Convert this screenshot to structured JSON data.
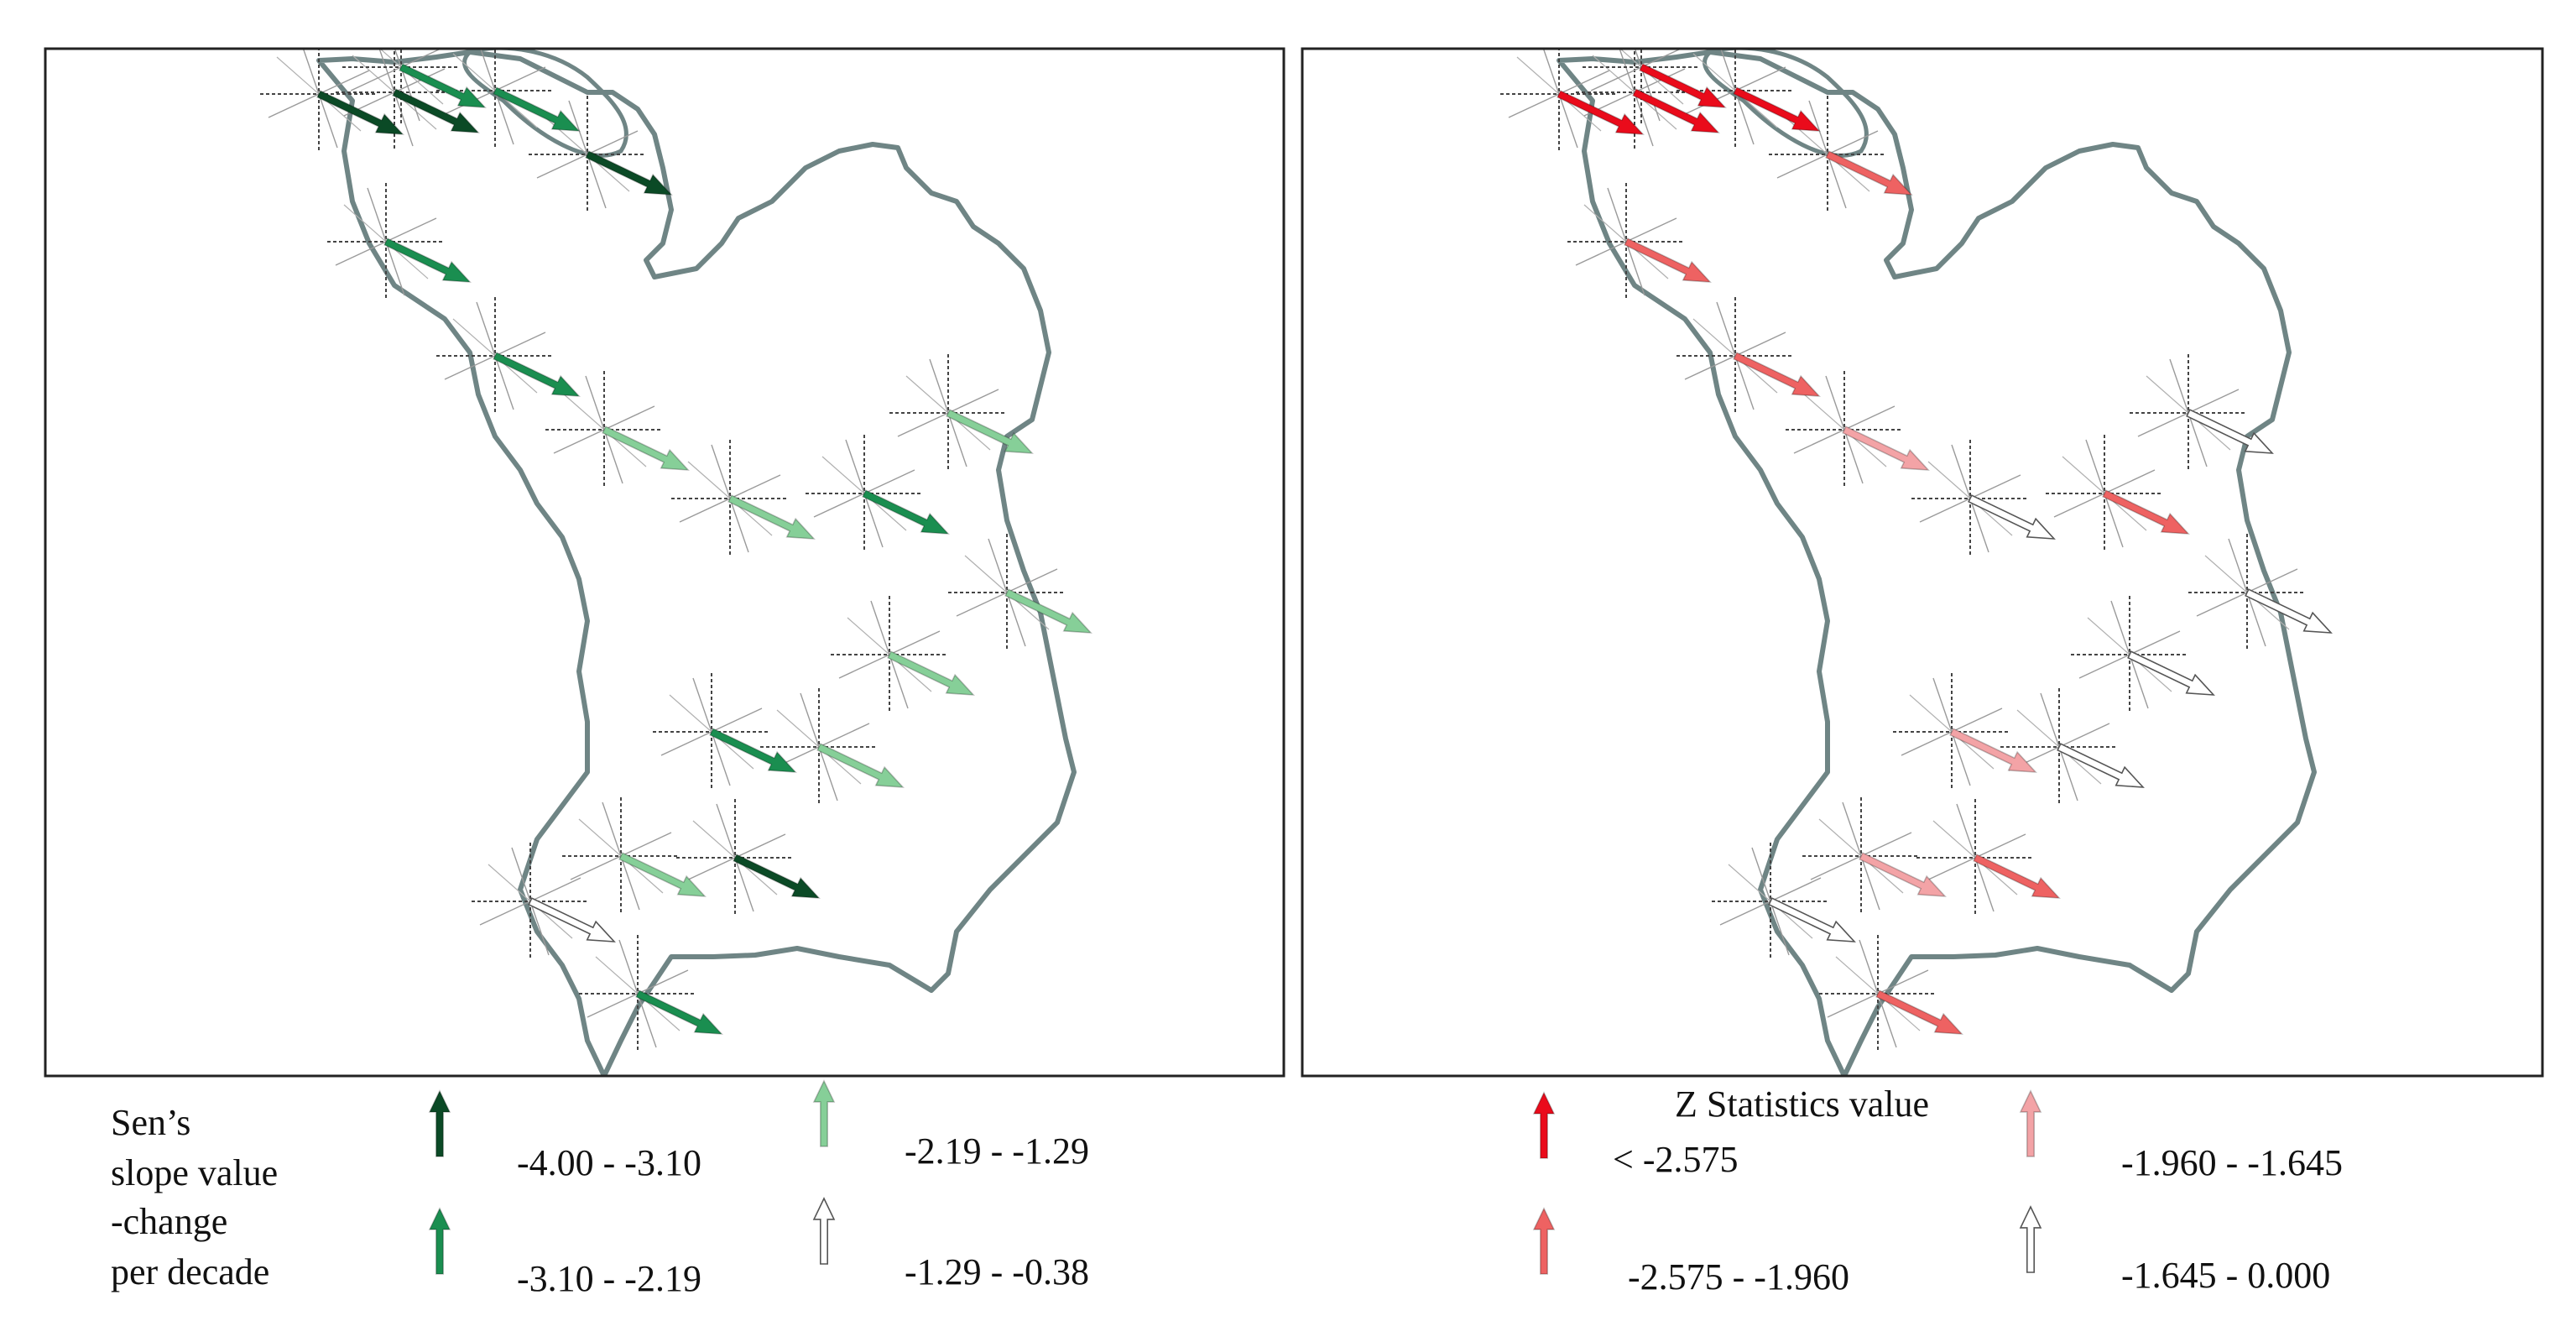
{
  "colors": {
    "boundary": "#6f8585",
    "frame": "#222222",
    "green_levels": [
      "#0b4a26",
      "#1a8e50",
      "#86cf98",
      "#ffffff"
    ],
    "red_levels": [
      "#ea0b1b",
      "#ee6262",
      "#f3a3a6",
      "#ffffff"
    ]
  },
  "icons": {
    "arrow": "arrow-icon",
    "wind_rose": "crosshair-icon"
  },
  "left_panel": {
    "legend": {
      "title_lines": [
        "Sen’s",
        "slope value",
        "-change",
        "per decade"
      ],
      "items": [
        {
          "label": "-4.00 - -3.10",
          "level": 0
        },
        {
          "label": "-3.10 - -2.19",
          "level": 1
        },
        {
          "label": "-2.19 - -1.29",
          "level": 2
        },
        {
          "label": "-1.29 - -0.38",
          "level": 3
        }
      ]
    }
  },
  "right_panel": {
    "legend": {
      "title": "Z Statistics value",
      "items": [
        {
          "label": "< -2.575",
          "level": 0
        },
        {
          "label": "-2.575 - -1.960",
          "level": 1
        },
        {
          "label": "-1.960 - -1.645",
          "level": 2
        },
        {
          "label": "-1.645 - 0.000",
          "level": 3
        }
      ]
    }
  },
  "stations": [
    {
      "slope_level": 0,
      "z_level": 0
    },
    {
      "slope_level": 0,
      "z_level": 0
    },
    {
      "slope_level": 1,
      "z_level": 0
    },
    {
      "slope_level": 1,
      "z_level": 0
    },
    {
      "slope_level": 1,
      "z_level": 1
    },
    {
      "slope_level": 0,
      "z_level": 1
    },
    {
      "slope_level": 1,
      "z_level": 1
    },
    {
      "slope_level": 2,
      "z_level": 2
    },
    {
      "slope_level": 2,
      "z_level": 3
    },
    {
      "slope_level": 1,
      "z_level": 1
    },
    {
      "slope_level": 2,
      "z_level": 3
    },
    {
      "slope_level": 2,
      "z_level": 3
    },
    {
      "slope_level": 2,
      "z_level": 3
    },
    {
      "slope_level": 1,
      "z_level": 2
    },
    {
      "slope_level": 2,
      "z_level": 3
    },
    {
      "slope_level": 2,
      "z_level": 2
    },
    {
      "slope_level": 0,
      "z_level": 1
    },
    {
      "slope_level": 3,
      "z_level": 3
    },
    {
      "slope_level": 1,
      "z_level": 1
    }
  ]
}
